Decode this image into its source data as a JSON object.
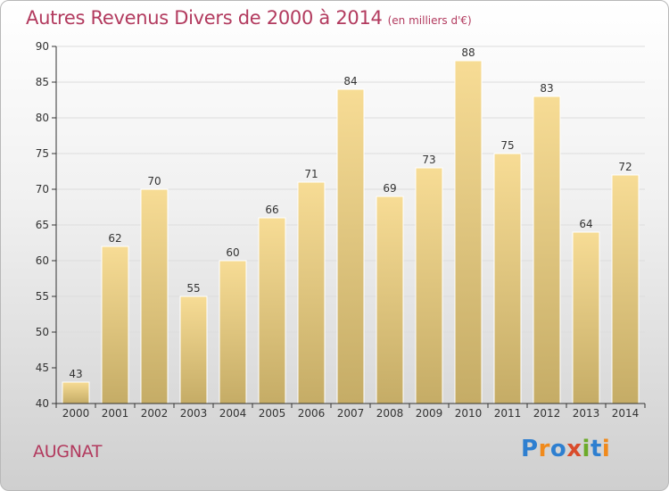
{
  "title": {
    "main": "Autres Revenus Divers de 2000 à 2014",
    "unit": "(en milliers d'€)"
  },
  "commune": "AUGNAT",
  "logo": {
    "text": "Proxiti",
    "letters": [
      {
        "ch": "P",
        "color": "#2e7fd0"
      },
      {
        "ch": "r",
        "color": "#f08a1c"
      },
      {
        "ch": "o",
        "color": "#2e7fd0"
      },
      {
        "ch": "x",
        "color": "#d94b2b"
      },
      {
        "ch": "i",
        "color": "#6cab2a"
      },
      {
        "ch": "t",
        "color": "#2e7fd0"
      },
      {
        "ch": "i",
        "color": "#f08a1c"
      }
    ]
  },
  "colors": {
    "title": "#b23a5e",
    "bar_top": "#f7dc95",
    "bar_bottom": "#c5ac66",
    "grid": "#dddddd",
    "axis": "#333333"
  },
  "chart_data": {
    "type": "bar",
    "categories": [
      "2000",
      "2001",
      "2002",
      "2003",
      "2004",
      "2005",
      "2006",
      "2007",
      "2008",
      "2009",
      "2010",
      "2011",
      "2012",
      "2013",
      "2014"
    ],
    "values": [
      43,
      62,
      70,
      55,
      60,
      66,
      71,
      84,
      69,
      73,
      88,
      75,
      83,
      64,
      72
    ],
    "ylim": [
      40,
      90
    ],
    "yticks": [
      40,
      45,
      50,
      55,
      60,
      65,
      70,
      75,
      80,
      85,
      90
    ],
    "title": "Autres Revenus Divers de 2000 à 2014",
    "xlabel": "",
    "ylabel": "",
    "grid": true,
    "data_labels": true
  }
}
